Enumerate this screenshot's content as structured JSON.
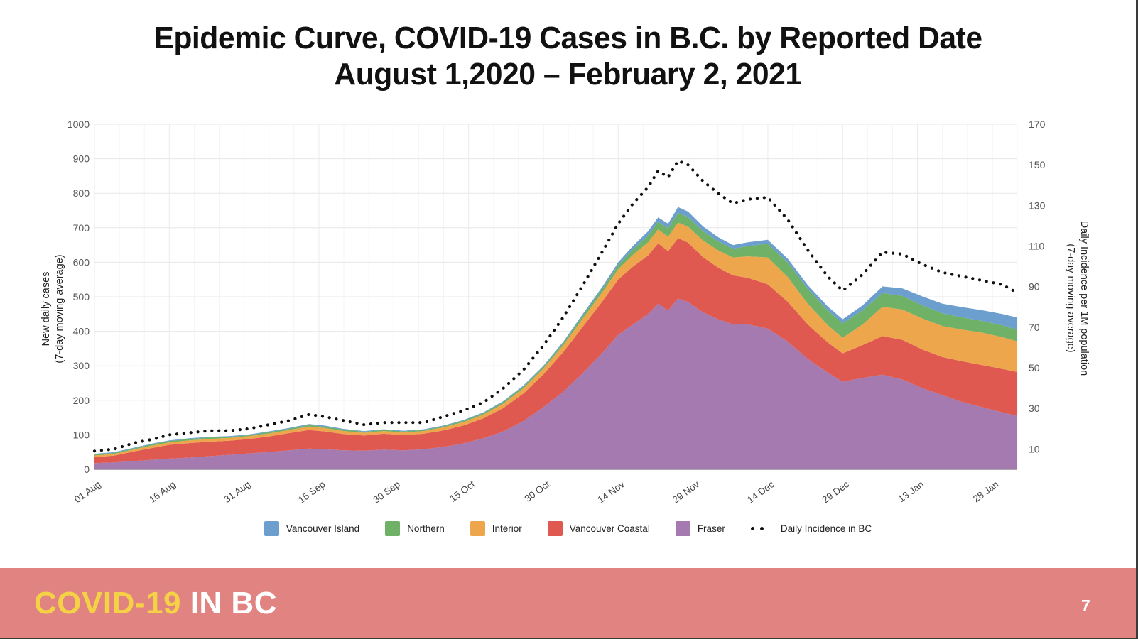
{
  "title": {
    "line1": "Epidemic Curve, COVID-19 Cases in B.C. by Reported Date",
    "line2": "August 1,2020 – February 2, 2021"
  },
  "chart_data": {
    "type": "area",
    "stacked": true,
    "grid": true,
    "legend_position": "bottom",
    "x_tick_labels": [
      "01 Aug",
      "16 Aug",
      "31 Aug",
      "15 Sep",
      "30 Sep",
      "15 Oct",
      "30 Oct",
      "14 Nov",
      "29 Nov",
      "14 Dec",
      "29 Dec",
      "13 Jan",
      "28 Jan"
    ],
    "x_tick_days": [
      0,
      15,
      30,
      45,
      60,
      75,
      90,
      105,
      120,
      135,
      150,
      165,
      180
    ],
    "x_range_days": [
      0,
      185
    ],
    "dates": [
      "Aug 1",
      "Aug 5",
      "Aug 9",
      "Aug 13",
      "Aug 16",
      "Aug 20",
      "Aug 24",
      "Aug 28",
      "Sep 1",
      "Sep 5",
      "Sep 9",
      "Sep 13",
      "Sep 16",
      "Sep 20",
      "Sep 24",
      "Sep 28",
      "Oct 2",
      "Oct 6",
      "Oct 10",
      "Oct 14",
      "Oct 18",
      "Oct 22",
      "Oct 26",
      "Oct 30",
      "Nov 3",
      "Nov 7",
      "Nov 11",
      "Nov 14",
      "Nov 17",
      "Nov 20",
      "Nov 22",
      "Nov 24",
      "Nov 26",
      "Nov 28",
      "Dec 1",
      "Dec 4",
      "Dec 7",
      "Dec 10",
      "Dec 14",
      "Dec 18",
      "Dec 22",
      "Dec 26",
      "Dec 29",
      "Jan 2",
      "Jan 6",
      "Jan 10",
      "Jan 14",
      "Jan 18",
      "Jan 22",
      "Jan 26",
      "Jan 30",
      "Feb 2"
    ],
    "day_offsets": [
      0,
      4,
      8,
      12,
      15,
      19,
      23,
      27,
      31,
      35,
      39,
      43,
      46,
      50,
      54,
      58,
      62,
      66,
      70,
      74,
      78,
      82,
      86,
      90,
      94,
      98,
      102,
      105,
      108,
      111,
      113,
      115,
      117,
      119,
      122,
      125,
      128,
      131,
      135,
      139,
      143,
      147,
      150,
      154,
      158,
      162,
      166,
      170,
      174,
      178,
      182,
      185
    ],
    "series": [
      {
        "name": "Vancouver Island",
        "color": "#6C9FCE",
        "values": [
          2,
          2,
          2,
          2,
          2,
          2,
          2,
          2,
          2,
          2,
          2,
          3,
          3,
          2,
          2,
          2,
          2,
          2,
          2,
          2,
          2,
          3,
          3,
          3,
          4,
          5,
          6,
          8,
          10,
          12,
          13,
          14,
          17,
          16,
          14,
          12,
          11,
          11,
          11,
          11,
          11,
          11,
          12,
          14,
          19,
          22,
          26,
          28,
          30,
          31,
          33,
          35
        ]
      },
      {
        "name": "Northern",
        "color": "#6FB166",
        "values": [
          3,
          3,
          3,
          4,
          4,
          4,
          4,
          3,
          3,
          4,
          4,
          4,
          4,
          4,
          3,
          3,
          3,
          3,
          3,
          4,
          4,
          4,
          5,
          5,
          6,
          8,
          10,
          12,
          16,
          20,
          22,
          24,
          28,
          28,
          27,
          26,
          25,
          30,
          40,
          42,
          43,
          43,
          42,
          41,
          40,
          39,
          38,
          37,
          35,
          34,
          34,
          34
        ]
      },
      {
        "name": "Interior",
        "color": "#EEA64C",
        "values": [
          5,
          5,
          6,
          7,
          7,
          8,
          8,
          8,
          8,
          9,
          9,
          10,
          10,
          9,
          8,
          8,
          8,
          8,
          9,
          10,
          11,
          13,
          15,
          17,
          20,
          24,
          27,
          30,
          34,
          38,
          40,
          42,
          45,
          46,
          48,
          50,
          52,
          62,
          78,
          72,
          60,
          50,
          45,
          60,
          85,
          88,
          90,
          90,
          92,
          94,
          92,
          89
        ]
      },
      {
        "name": "Vancouver Coastal",
        "color": "#DF5950",
        "values": [
          17,
          20,
          28,
          35,
          40,
          42,
          42,
          41,
          42,
          45,
          50,
          54,
          52,
          47,
          44,
          46,
          44,
          45,
          48,
          52,
          58,
          68,
          80,
          95,
          115,
          135,
          150,
          160,
          168,
          170,
          175,
          172,
          175,
          172,
          160,
          150,
          142,
          135,
          128,
          115,
          100,
          88,
          82,
          95,
          112,
          115,
          112,
          110,
          118,
          122,
          126,
          127
        ]
      },
      {
        "name": "Fraser",
        "color": "#A47AB0",
        "values": [
          18,
          20,
          24,
          28,
          31,
          34,
          38,
          42,
          46,
          50,
          55,
          60,
          58,
          55,
          54,
          57,
          55,
          58,
          65,
          75,
          90,
          110,
          140,
          180,
          225,
          280,
          340,
          390,
          420,
          450,
          480,
          460,
          495,
          485,
          455,
          435,
          420,
          420,
          408,
          370,
          320,
          280,
          254,
          265,
          274,
          260,
          235,
          215,
          195,
          180,
          165,
          155
        ]
      }
    ],
    "incidence_line": {
      "name": "Daily Incidence in BC",
      "color": "#111111",
      "values": [
        9,
        10,
        13,
        15,
        17,
        18,
        19,
        19,
        20,
        22,
        24,
        27,
        26,
        24,
        22,
        23,
        23,
        23,
        26,
        29,
        33,
        40,
        49,
        61,
        75,
        91,
        108,
        121,
        131,
        139,
        147,
        144,
        152,
        150,
        142,
        136,
        131,
        133,
        134,
        123,
        108,
        95,
        88,
        96,
        107,
        106,
        101,
        97,
        95,
        93,
        91,
        87
      ]
    },
    "y_left": {
      "label_line1": "New daily cases",
      "label_line2": "(7-day moving average)",
      "min": 0,
      "max": 1000,
      "tick_step": 100
    },
    "y_right": {
      "label_line1": "Daily Incidence per 1M population",
      "label_line2": "(7-day moving average)",
      "min": 0,
      "max": 170,
      "tick_start": 10,
      "tick_end": 170,
      "tick_step": 20
    }
  },
  "legend": {
    "items": [
      {
        "label": "Vancouver Island",
        "color": "#6C9FCE"
      },
      {
        "label": "Northern",
        "color": "#6FB166"
      },
      {
        "label": "Interior",
        "color": "#EEA64C"
      },
      {
        "label": "Vancouver Coastal",
        "color": "#DF5950"
      },
      {
        "label": "Fraser",
        "color": "#A47AB0"
      }
    ],
    "dotted_label": "Daily Incidence in BC"
  },
  "footer": {
    "brand_primary": "COVID-19",
    "brand_secondary": "IN BC",
    "page_number": "7",
    "background": "#E08381",
    "primary_color": "#F5D245",
    "secondary_color": "#FFFFFF"
  }
}
